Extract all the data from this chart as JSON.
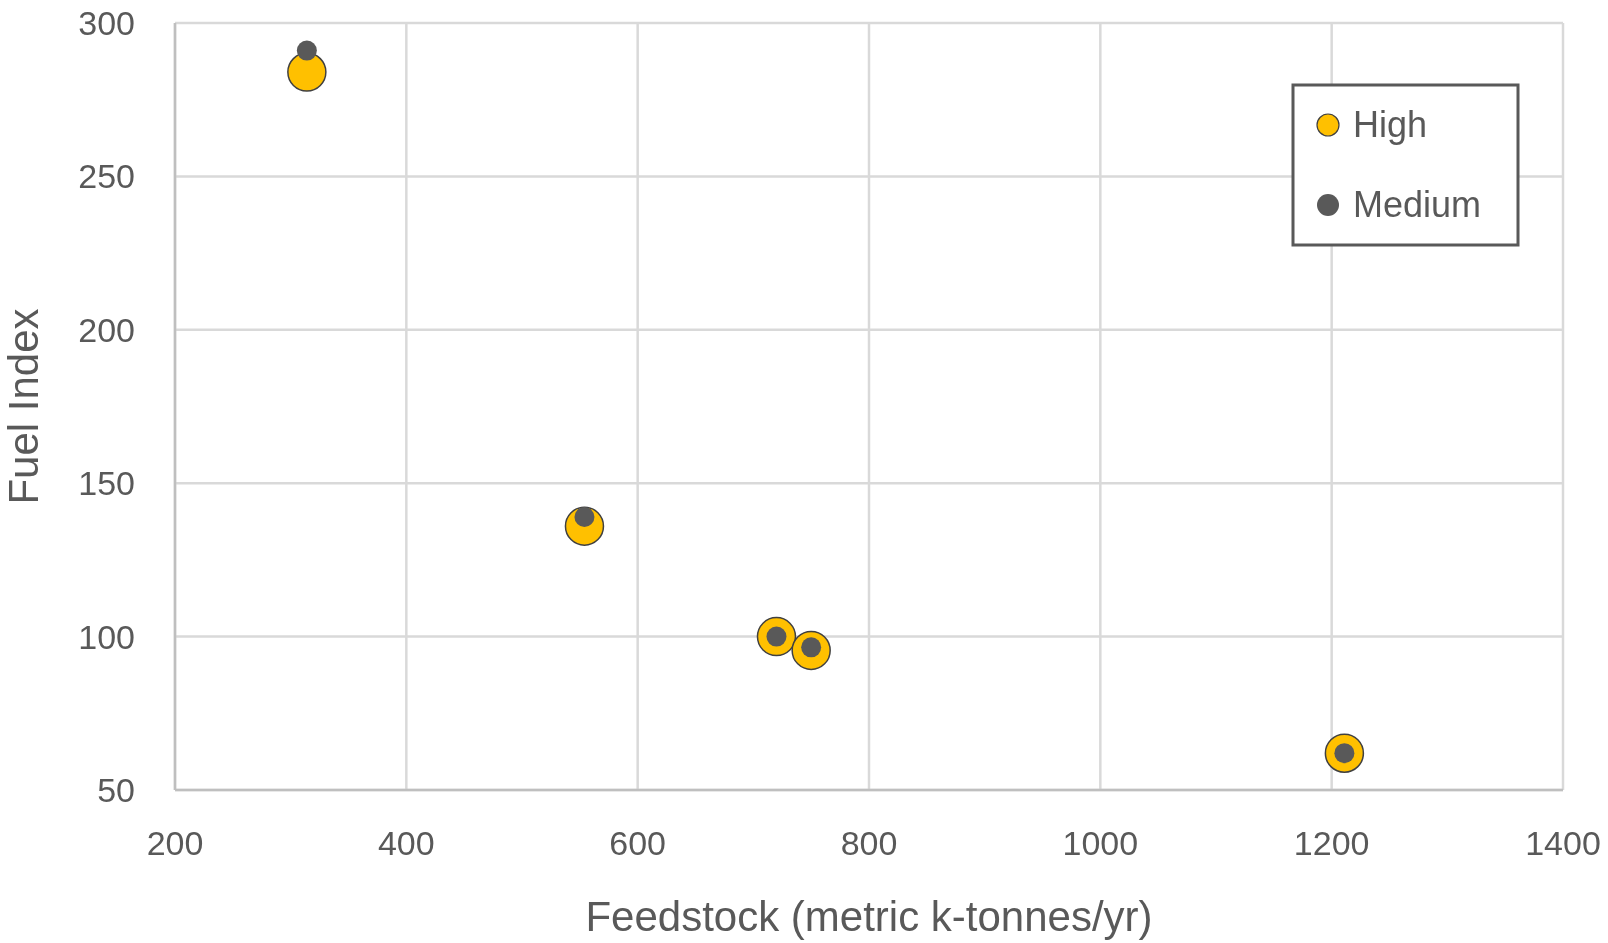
{
  "chart_data": {
    "type": "scatter",
    "xlabel": "Feedstock (metric k-tonnes/yr)",
    "ylabel": "Fuel Index",
    "xlim": [
      200,
      1400
    ],
    "xticks": [
      200,
      400,
      600,
      800,
      1000,
      1200,
      1400
    ],
    "ylim": [
      50,
      300
    ],
    "yticks": [
      50,
      100,
      150,
      200,
      250,
      300
    ],
    "grid": true,
    "legend": "top right",
    "marker": "circle",
    "series": [
      {
        "name": "High",
        "color": "#ffc000",
        "x": [
          314,
          554,
          720,
          750,
          1211
        ],
        "values": [
          284,
          136,
          100,
          95.5,
          62
        ]
      },
      {
        "name": "Medium",
        "color": "#595959",
        "x": [
          314,
          554,
          720,
          750,
          1211
        ],
        "values": [
          291,
          139,
          100,
          96.5,
          62
        ]
      }
    ]
  }
}
